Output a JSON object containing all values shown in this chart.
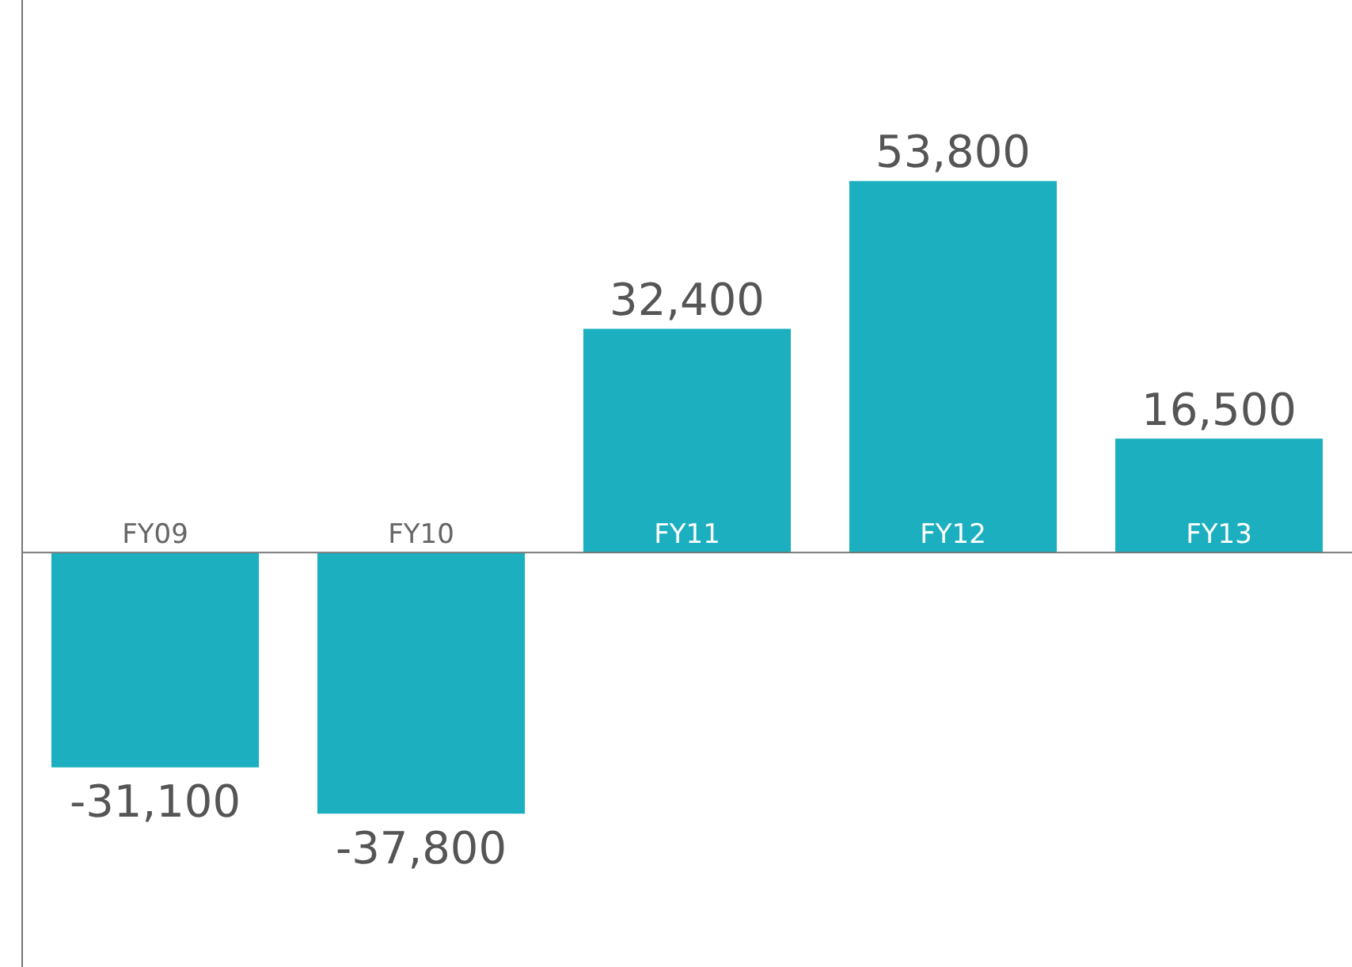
{
  "chart_data": {
    "type": "bar",
    "categories": [
      "FY09",
      "FY10",
      "FY11",
      "FY12",
      "FY13"
    ],
    "values": [
      -31100,
      -37800,
      32400,
      53800,
      16500
    ],
    "value_labels": [
      "-31,100",
      "-37,800",
      "32,400",
      "53,800",
      "16,500"
    ],
    "color": "#1bafbf",
    "grid": false,
    "legend": false
  }
}
